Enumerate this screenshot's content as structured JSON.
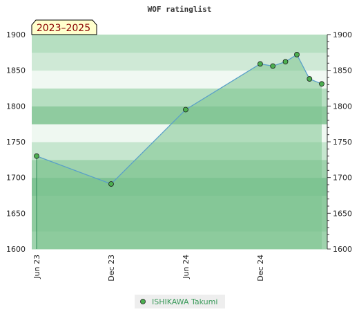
{
  "chart_data": {
    "type": "area",
    "title": "WOF ratinglist",
    "badge": "2023–2025",
    "y_ticks": [
      "1600",
      "1650",
      "1700",
      "1750",
      "1800",
      "1850",
      "1900"
    ],
    "ylim": [
      1600,
      1900
    ],
    "x_ticks": [
      {
        "label": "Jun 23",
        "date": "2023-06-01"
      },
      {
        "label": "Dec 23",
        "date": "2023-12-01"
      },
      {
        "label": "Jun 24",
        "date": "2024-06-01"
      },
      {
        "label": "Dec 24",
        "date": "2024-12-01"
      }
    ],
    "xlim": [
      "2023-06-01",
      "2025-05-01"
    ],
    "series": [
      {
        "name": "ISHIKAWA Takumi",
        "points": [
          {
            "x": "2023-06-01",
            "y": 1730
          },
          {
            "x": "2023-12-01",
            "y": 1691
          },
          {
            "x": "2024-06-01",
            "y": 1795
          },
          {
            "x": "2024-12-01",
            "y": 1859
          },
          {
            "x": "2025-01-01",
            "y": 1856
          },
          {
            "x": "2025-02-01",
            "y": 1862
          },
          {
            "x": "2025-03-01",
            "y": 1872
          },
          {
            "x": "2025-04-01",
            "y": 1838
          },
          {
            "x": "2025-05-01",
            "y": 1831
          }
        ]
      }
    ],
    "colors": {
      "line": "#5aa0c8",
      "fill": "#7dc48f",
      "marker": "#4caf50",
      "legend_text": "#3a9a5a",
      "badge_bg": "#ffffcc",
      "badge_text": "#8b0000"
    },
    "legend_position": "bottom-center",
    "grid": false
  }
}
